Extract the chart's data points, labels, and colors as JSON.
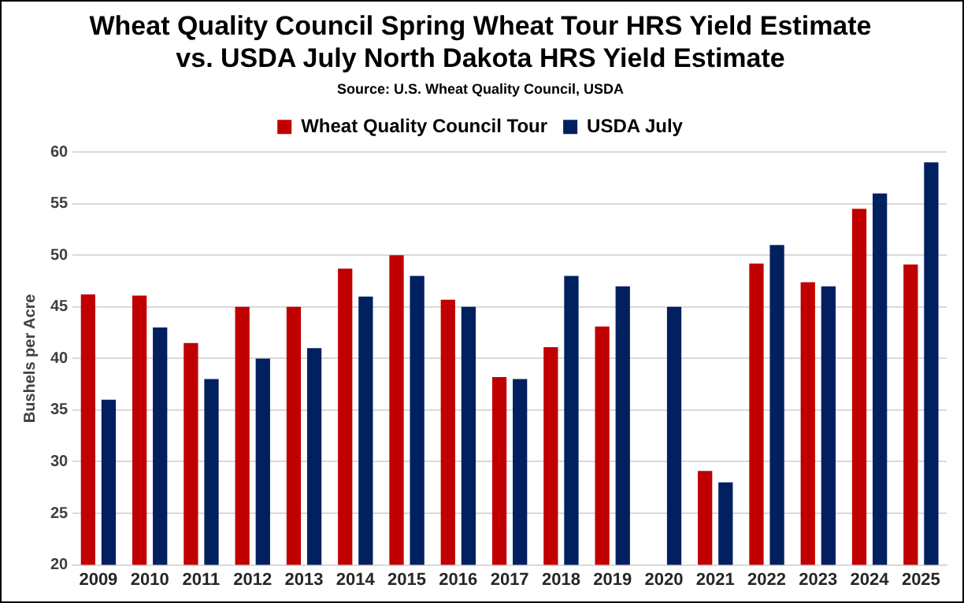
{
  "chart_data": {
    "type": "bar",
    "title": "Wheat Quality Council Spring Wheat Tour HRS Yield Estimate\nvs. USDA July North Dakota HRS Yield Estimate",
    "subtitle": "Source: U.S. Wheat Quality Council, USDA",
    "ylabel": "Bushels per Acre",
    "categories": [
      "2009",
      "2010",
      "2011",
      "2012",
      "2013",
      "2014",
      "2015",
      "2016",
      "2017",
      "2018",
      "2019",
      "2020",
      "2021",
      "2022",
      "2023",
      "2024",
      "2025"
    ],
    "series": [
      {
        "name": "Wheat Quality Council Tour",
        "color": "#c00000",
        "values": [
          46.2,
          46.1,
          41.5,
          45,
          45,
          48.7,
          50,
          45.7,
          38.2,
          41.1,
          43.1,
          null,
          29.1,
          49.2,
          47.4,
          54.5,
          49.1
        ]
      },
      {
        "name": "USDA July",
        "color": "#002060",
        "values": [
          36,
          43,
          38,
          40,
          41,
          46,
          48,
          45,
          38,
          48,
          47,
          45,
          28,
          51,
          47,
          56,
          59
        ]
      }
    ],
    "ylim": [
      20,
      60
    ],
    "yticks": [
      20,
      25,
      30,
      35,
      40,
      45,
      50,
      55,
      60
    ],
    "grid": "y",
    "legend": "top"
  }
}
